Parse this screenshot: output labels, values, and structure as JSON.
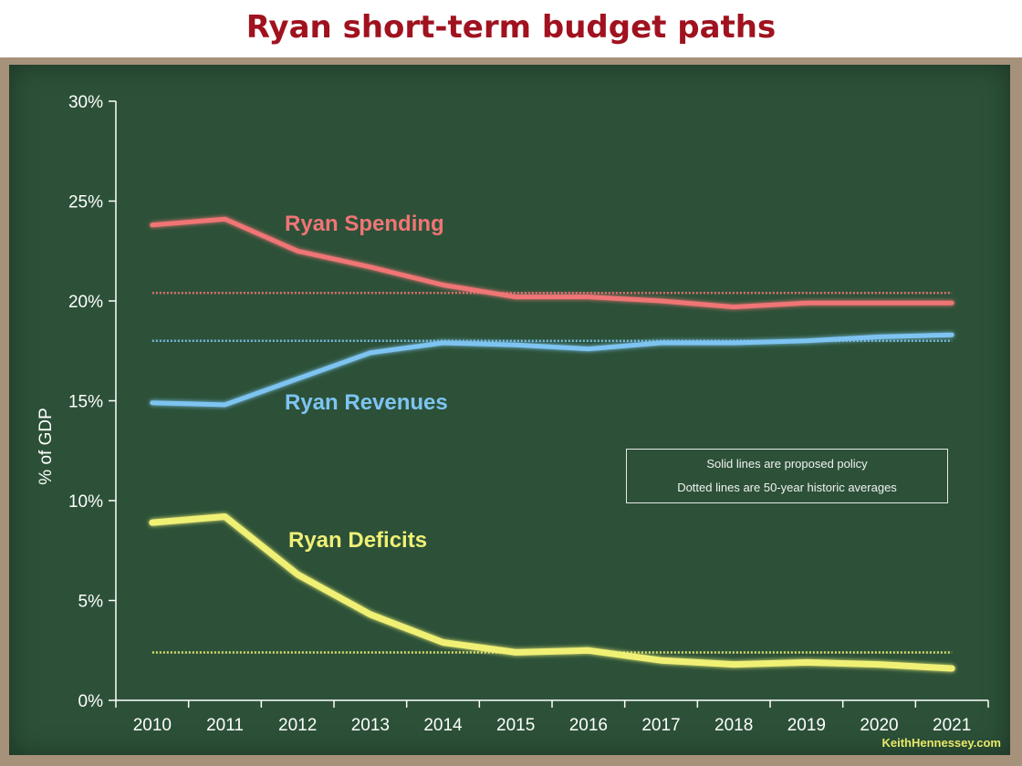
{
  "title": "Ryan short-term budget paths",
  "credit": "KeithHennessey.com",
  "notes": [
    "Solid lines are proposed policy",
    "Dotted lines are 50-year historic averages"
  ],
  "colors": {
    "title": "#a0121f",
    "board": "#2c5138",
    "frame": "#a6917a",
    "spending": "#f07575",
    "revenues": "#7ec4f2",
    "deficits": "#f0f075",
    "axis": "#ffffff"
  },
  "chart_data": {
    "type": "line",
    "title": "",
    "xlabel": "",
    "ylabel": "% of GDP",
    "ylim": [
      0,
      30
    ],
    "yticks": [
      "0%",
      "5%",
      "10%",
      "15%",
      "20%",
      "25%",
      "30%"
    ],
    "categories": [
      "2010",
      "2011",
      "2012",
      "2013",
      "2014",
      "2015",
      "2016",
      "2017",
      "2018",
      "2019",
      "2020",
      "2021"
    ],
    "legend": "direct labels",
    "grid": false,
    "series": [
      {
        "name": "Ryan Spending",
        "color": "#f07575",
        "values": [
          23.8,
          24.1,
          22.5,
          21.7,
          20.8,
          20.2,
          20.2,
          20.0,
          19.7,
          19.9,
          19.9,
          19.9
        ]
      },
      {
        "name": "Ryan Revenues",
        "color": "#7ec4f2",
        "values": [
          14.9,
          14.8,
          16.1,
          17.4,
          17.9,
          17.8,
          17.6,
          17.9,
          17.9,
          18.0,
          18.2,
          18.3
        ]
      },
      {
        "name": "Ryan Deficits",
        "color": "#f0f075",
        "values": [
          8.9,
          9.2,
          6.3,
          4.3,
          2.9,
          2.4,
          2.5,
          2.0,
          1.8,
          1.9,
          1.8,
          1.6
        ]
      }
    ],
    "historic_averages": [
      {
        "color": "#f07575",
        "value": 20.4
      },
      {
        "color": "#7ec4f2",
        "value": 18.0
      },
      {
        "color": "#f0f075",
        "value": 2.4
      }
    ]
  }
}
